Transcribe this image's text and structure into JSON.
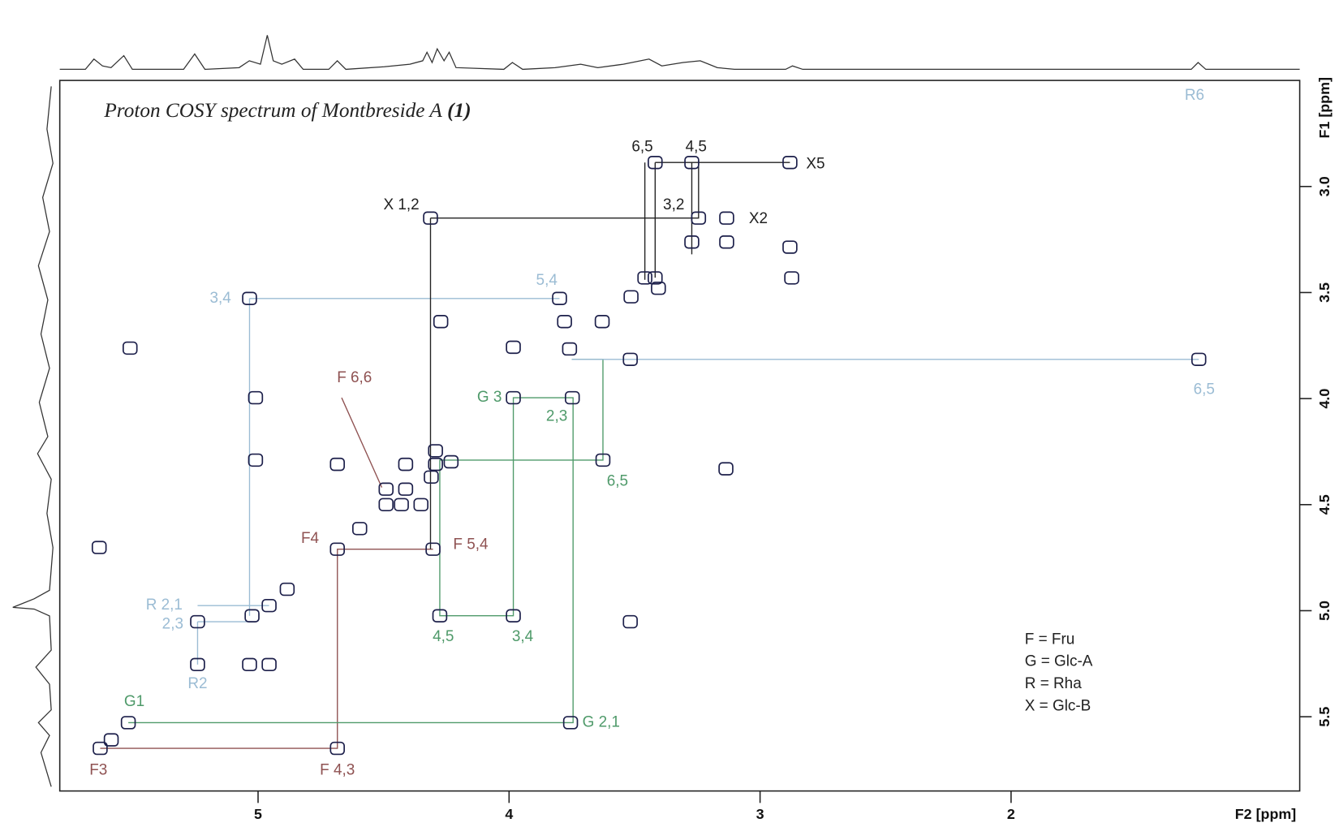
{
  "chart_data": {
    "type": "scatter",
    "title": "Proton COSY spectrum of Montbreside A",
    "title_ref": "(1)",
    "x_label": "F2 [ppm]",
    "y_label": "F1 [ppm]",
    "xlim": [
      5.79,
      0.85
    ],
    "ylim": [
      2.5,
      5.85
    ],
    "xticks": [
      5,
      4,
      3,
      2
    ],
    "yticks": [
      {
        "value": 3.0,
        "label": "3.0"
      },
      {
        "value": 3.5,
        "label": "3.5"
      },
      {
        "value": 4.0,
        "label": "4.0"
      },
      {
        "value": 4.5,
        "label": "4.5"
      },
      {
        "value": 5.0,
        "label": "5.0"
      },
      {
        "value": 5.5,
        "label": "5.5"
      }
    ],
    "peak_color": "#1c1f4a",
    "x": [
      5.629,
      4.684,
      4.684,
      4.303,
      5.517,
      3.755,
      3.983,
      3.748,
      4.276,
      3.983,
      3.626,
      3.517,
      1.252,
      3.799,
      5.034,
      5.01,
      5.01,
      5.024,
      5.241,
      5.241,
      4.956,
      4.313,
      3.245,
      3.133,
      3.418,
      3.272,
      2.881,
      2.881,
      2.874,
      3.133,
      3.272,
      3.459,
      3.418,
      3.405,
      3.514,
      3.779,
      3.629,
      4.272,
      3.983,
      3.759,
      5.51,
      4.684,
      4.595,
      4.884,
      5.633,
      3.136,
      3.517,
      5.034,
      4.956,
      5.585,
      4.49,
      4.412,
      4.429,
      4.49,
      4.351,
      4.293,
      4.231,
      4.412,
      4.293,
      4.31
    ],
    "values": [
      5.649,
      5.649,
      4.71,
      4.71,
      5.528,
      5.528,
      3.996,
      3.996,
      5.024,
      5.024,
      4.29,
      3.815,
      3.815,
      3.528,
      3.528,
      3.996,
      4.29,
      5.024,
      5.052,
      5.254,
      4.976,
      3.149,
      3.149,
      3.149,
      2.887,
      2.887,
      2.887,
      3.286,
      3.431,
      3.262,
      3.262,
      3.431,
      3.431,
      3.48,
      3.52,
      3.637,
      3.637,
      3.637,
      3.758,
      3.766,
      3.762,
      4.31,
      4.613,
      4.899,
      4.702,
      4.331,
      5.052,
      5.254,
      5.254,
      5.609,
      4.427,
      4.427,
      4.5,
      4.5,
      4.5,
      4.246,
      4.298,
      4.31,
      4.31,
      4.37
    ],
    "connections": [
      {
        "color": "#8f5252",
        "x": [
          5.629,
          4.684,
          4.684,
          4.303,
          null,
          4.667,
          4.507
        ],
        "y": [
          5.649,
          5.649,
          4.71,
          4.71,
          null,
          3.996,
          4.419
        ]
      },
      {
        "color": "#4f9a6a",
        "x": [
          5.517,
          3.745,
          3.745,
          3.983,
          3.983,
          4.276,
          4.276,
          3.626,
          3.626,
          3.75
        ],
        "y": [
          5.528,
          5.528,
          3.996,
          3.996,
          5.024,
          5.024,
          4.29,
          4.29,
          3.815,
          3.815
        ]
      },
      {
        "color": "#9bbcd4",
        "x": [
          1.252,
          3.75,
          null,
          5.034,
          3.799,
          null,
          5.034,
          5.034,
          null,
          5.241,
          4.956,
          null,
          5.241,
          5.024,
          null,
          5.241,
          5.241
        ],
        "y": [
          3.815,
          3.815,
          null,
          3.528,
          3.528,
          null,
          3.528,
          5.024,
          null,
          4.976,
          4.976,
          null,
          5.052,
          5.052,
          null,
          5.052,
          5.254
        ]
      },
      {
        "color": "#222222",
        "x": [
          4.313,
          4.313,
          null,
          4.313,
          3.245,
          3.245,
          null,
          3.418,
          2.881,
          null,
          3.459,
          3.459,
          null,
          3.418,
          3.418,
          null,
          3.272,
          3.272
        ],
        "y": [
          3.149,
          4.71,
          null,
          3.149,
          3.149,
          2.887,
          null,
          2.887,
          2.887,
          null,
          2.887,
          3.44,
          null,
          2.887,
          3.43,
          null,
          2.887,
          3.32
        ]
      }
    ],
    "annotations": [
      {
        "text": "X 1,2",
        "x": 4.429,
        "y": 3.089,
        "color": "#222222"
      },
      {
        "text": "6,5",
        "x": 3.469,
        "y": 2.815,
        "color": "#222222"
      },
      {
        "text": "4,5",
        "x": 3.255,
        "y": 2.815,
        "color": "#222222"
      },
      {
        "text": "X5",
        "x": 2.779,
        "y": 2.895,
        "color": "#222222"
      },
      {
        "text": "3,2",
        "x": 3.344,
        "y": 3.089,
        "color": "#222222"
      },
      {
        "text": "X2",
        "x": 3.007,
        "y": 3.153,
        "color": "#222222"
      },
      {
        "text": "5,4",
        "x": 3.85,
        "y": 3.444,
        "color": "#9bbcd4"
      },
      {
        "text": "3,4",
        "x": 5.15,
        "y": 3.528,
        "color": "#9bbcd4"
      },
      {
        "text": "F 6,6",
        "x": 4.616,
        "y": 3.903,
        "color": "#8f5252"
      },
      {
        "text": "G 3",
        "x": 4.078,
        "y": 3.996,
        "color": "#4f9a6a"
      },
      {
        "text": "2,3",
        "x": 3.81,
        "y": 4.085,
        "color": "#4f9a6a"
      },
      {
        "text": "6,5",
        "x": 3.568,
        "y": 4.391,
        "color": "#4f9a6a"
      },
      {
        "text": "F4",
        "x": 4.793,
        "y": 4.661,
        "color": "#8f5252"
      },
      {
        "text": "F 5,4",
        "x": 4.153,
        "y": 4.69,
        "color": "#8f5252"
      },
      {
        "text": "R 2,1",
        "x": 5.374,
        "y": 4.976,
        "color": "#9bbcd4"
      },
      {
        "text": "2,3",
        "x": 5.34,
        "y": 5.065,
        "color": "#9bbcd4"
      },
      {
        "text": "4,5",
        "x": 4.262,
        "y": 5.125,
        "color": "#4f9a6a"
      },
      {
        "text": "3,4",
        "x": 3.946,
        "y": 5.125,
        "color": "#4f9a6a"
      },
      {
        "text": "R2",
        "x": 5.241,
        "y": 5.347,
        "color": "#9bbcd4"
      },
      {
        "text": "G1",
        "x": 5.493,
        "y": 5.431,
        "color": "#4f9a6a"
      },
      {
        "text": "G 2,1",
        "x": 3.633,
        "y": 5.528,
        "color": "#4f9a6a"
      },
      {
        "text": "F3",
        "x": 5.636,
        "y": 5.754,
        "color": "#8f5252"
      },
      {
        "text": "F 4,3",
        "x": 4.684,
        "y": 5.754,
        "color": "#8f5252"
      },
      {
        "text": "R6",
        "x": 1.269,
        "y": 2.573,
        "color": "#9bbcd4"
      },
      {
        "text": "6,5",
        "x": 1.231,
        "y": 3.96,
        "color": "#9bbcd4"
      }
    ],
    "legend": [
      "F = Fru",
      "G = Glc-A",
      "R = Rha",
      "X = Glc-B"
    ],
    "legend_position": "lower right"
  }
}
